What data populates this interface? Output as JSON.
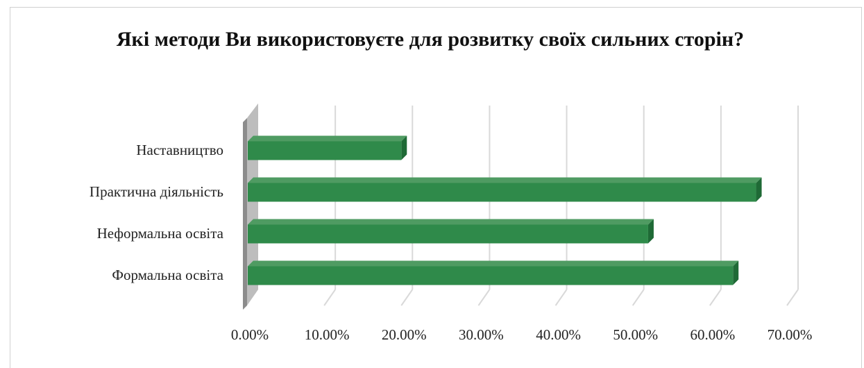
{
  "chart_data": {
    "type": "bar",
    "orientation": "horizontal",
    "title": "Які методи Ви використовуєте для розвитку своїх сильних сторін?",
    "categories": [
      "Формальна освіта",
      "Неформальна освіта",
      "Практична діяльність",
      "Наставництво"
    ],
    "values": [
      0.63,
      0.52,
      0.66,
      0.2
    ],
    "xlim": [
      0,
      0.7
    ],
    "xticks": [
      "0.00%",
      "10.00%",
      "20.00%",
      "30.00%",
      "40.00%",
      "50.00%",
      "60.00%",
      "70.00%"
    ],
    "grid": true,
    "style": "3d",
    "colors": {
      "bar": "#2f8a4a",
      "bar_top": "#4f9b62",
      "bar_side": "#1f6a36",
      "grid": "#d9d9d9"
    }
  }
}
